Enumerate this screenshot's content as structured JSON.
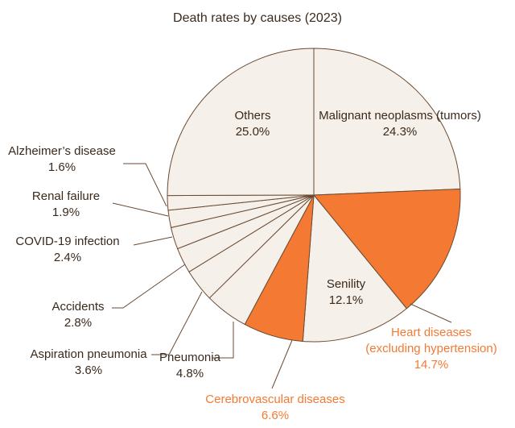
{
  "chart_data": {
    "type": "pie",
    "title": "Death rates by causes (2023)",
    "unit": "%",
    "start": "12 o'clock",
    "direction": "clockwise",
    "slices": [
      {
        "label": "Malignant neoplasms (tumors)",
        "value": 24.3,
        "value_text": "24.3%",
        "color": "#f5f0e9",
        "label_color": "#3b2a1c"
      },
      {
        "label": "Heart diseases (excluding hypertension)",
        "value": 14.7,
        "value_text": "14.7%",
        "color": "#f47a33",
        "label_color": "#f47a33"
      },
      {
        "label": "Senility",
        "value": 12.1,
        "value_text": "12.1%",
        "color": "#f5f0e9",
        "label_color": "#3b2a1c"
      },
      {
        "label": "Cerebrovascular diseases",
        "value": 6.6,
        "value_text": "6.6%",
        "color": "#f47a33",
        "label_color": "#f47a33"
      },
      {
        "label": "Pneumonia",
        "value": 4.8,
        "value_text": "4.8%",
        "color": "#f5f0e9",
        "label_color": "#3b2a1c"
      },
      {
        "label": "Aspiration pneumonia",
        "value": 3.6,
        "value_text": "3.6%",
        "color": "#f5f0e9",
        "label_color": "#3b2a1c"
      },
      {
        "label": "Accidents",
        "value": 2.8,
        "value_text": "2.8%",
        "color": "#f5f0e9",
        "label_color": "#3b2a1c"
      },
      {
        "label": "COVID-19 infection",
        "value": 2.4,
        "value_text": "2.4%",
        "color": "#f5f0e9",
        "label_color": "#3b2a1c"
      },
      {
        "label": "Renal failure",
        "value": 1.9,
        "value_text": "1.9%",
        "color": "#f5f0e9",
        "label_color": "#3b2a1c"
      },
      {
        "label": "Alzheimer's disease",
        "value": 1.6,
        "value_text": "1.6%",
        "color": "#f5f0e9",
        "label_color": "#3b2a1c"
      },
      {
        "label": "Others",
        "value": 25.0,
        "value_text": "25.0%",
        "color": "#f5f0e9",
        "label_color": "#3b2a1c"
      }
    ],
    "label_lines": [
      [
        "Malignant neoplasms (tumors)"
      ],
      [
        "Heart diseases",
        "(excluding hypertension)"
      ],
      [
        "Senility"
      ],
      [
        "Cerebrovascular diseases"
      ],
      [
        "Pneumonia"
      ],
      [
        "Aspiration pneumonia"
      ],
      [
        "Accidents"
      ],
      [
        "COVID-19 infection"
      ],
      [
        "Renal failure"
      ],
      [
        "Alzheimer’s disease"
      ],
      [
        "Others"
      ]
    ],
    "colors": {
      "outline": "#6b4a33",
      "text": "#3b2a1c",
      "highlight": "#f47a33",
      "base": "#f5f0e9"
    }
  }
}
